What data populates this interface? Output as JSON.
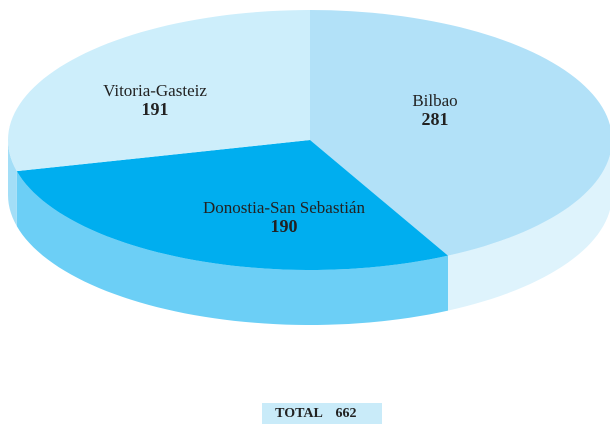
{
  "chart_data": {
    "type": "pie3d",
    "slices": [
      {
        "name": "Bilbao",
        "value": 281,
        "color": "#b2e1f8",
        "side_color": "#def3fc"
      },
      {
        "name": "Donostia-San Sebastián",
        "value": 190,
        "color": "#00aeef",
        "side_color": "#6ccff6"
      },
      {
        "name": "Vitoria-Gasteiz",
        "value": 191,
        "color": "#cdeefb",
        "side_color": "#a3def7"
      }
    ],
    "total_label": "TOTAL",
    "total": 662,
    "total_box_color": "#c9ebf9"
  }
}
